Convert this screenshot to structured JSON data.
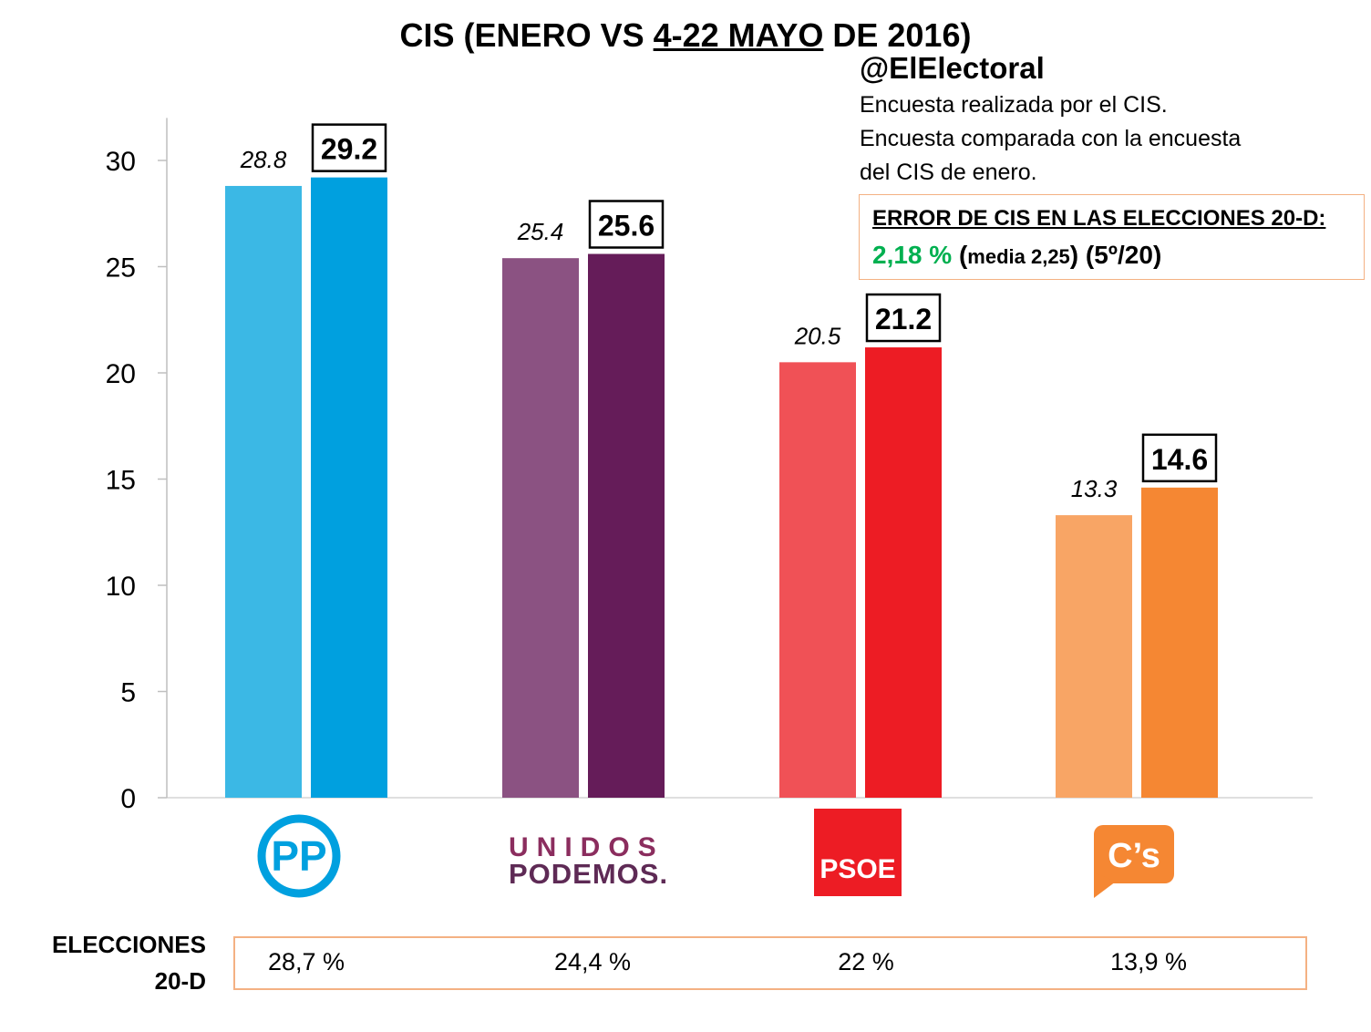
{
  "title_prefix": "CIS (ENERO VS ",
  "title_underlined": "4-22 MAYO",
  "title_suffix": " DE 2016)",
  "handle": "@ElElectoral",
  "notes": [
    "Encuesta realizada por el CIS.",
    "Encuesta comparada con la encuesta",
    "del CIS de enero."
  ],
  "error_box": {
    "heading": "ERROR DE CIS EN LAS ELECCIONES 20-D:",
    "value": "2,18 %",
    "media_open": " (",
    "media": "media 2,25",
    "rank": ") (5º/20)",
    "value_color": "#00b050"
  },
  "logos": {
    "pp": "PP",
    "podemos_top": "UNIDOS",
    "podemos_bottom": "PODEMOS.",
    "psoe": "PSOE",
    "cs": "C’s"
  },
  "elecciones": {
    "label_line1": "ELECCIONES",
    "label_line2": "20-D",
    "values": [
      "28,7 %",
      "24,4 %",
      "22 %",
      "13,9 %"
    ]
  },
  "chart_data": {
    "type": "bar",
    "categories": [
      "PP",
      "Unidos Podemos",
      "PSOE",
      "C's"
    ],
    "series": [
      {
        "values": [
          28.8,
          25.4,
          20.5,
          13.3
        ]
      },
      {
        "values": [
          29.2,
          25.6,
          21.2,
          14.6
        ]
      }
    ],
    "value_labels": [
      [
        "28.8",
        "25.4",
        "20.5",
        "13.3"
      ],
      [
        "29.2",
        "25.6",
        "21.2",
        "14.6"
      ]
    ],
    "colors": [
      [
        "#3bb8e5",
        "#8b5282",
        "#f05156",
        "#f8a565"
      ],
      [
        "#00a0df",
        "#651c59",
        "#ed1c24",
        "#f58733"
      ]
    ],
    "ylim": [
      0,
      32
    ],
    "yticks": [
      0,
      5,
      10,
      15,
      20,
      25,
      30
    ],
    "ytick_labels": [
      "0",
      "5",
      "10",
      "15",
      "20",
      "25",
      "30"
    ],
    "grid": false,
    "title": "",
    "xlabel": "",
    "ylabel": ""
  }
}
